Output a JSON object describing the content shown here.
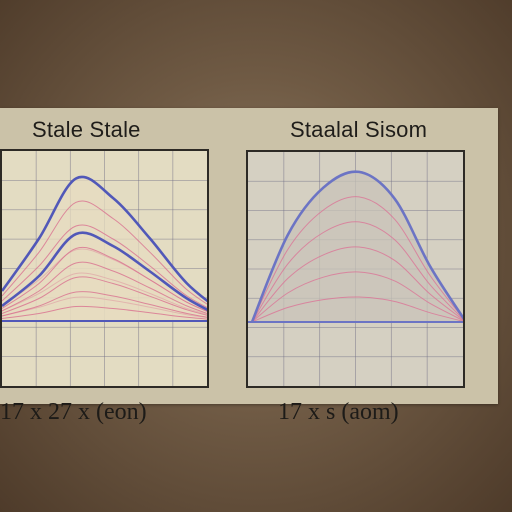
{
  "chart_data": [
    {
      "type": "area",
      "title": "Stale Stale",
      "caption": "17 x 27 x (eon)",
      "grid": true,
      "legend": "none",
      "colors": {
        "outline": "#5158b8",
        "inner_lines": "#d86a8c",
        "fill": "#e7dcc0"
      },
      "series": [
        {
          "values": [
            0.2,
            0.55,
            0.95,
            0.82,
            0.55,
            0.25,
            0.05
          ]
        },
        {
          "values": [
            0.1,
            0.3,
            0.58,
            0.5,
            0.33,
            0.15,
            0.02
          ]
        }
      ]
    },
    {
      "type": "area",
      "title": "Staalal Sisom",
      "caption": "17 x s (aom)",
      "grid": true,
      "legend": "none",
      "colors": {
        "outline": "#6c74c4",
        "inner_lines": "#dc6f94",
        "fill": "#c8c3b8"
      },
      "series": [
        {
          "values": [
            0.0,
            0.55,
            0.85,
            0.95,
            0.78,
            0.35,
            0.0
          ]
        }
      ]
    }
  ]
}
